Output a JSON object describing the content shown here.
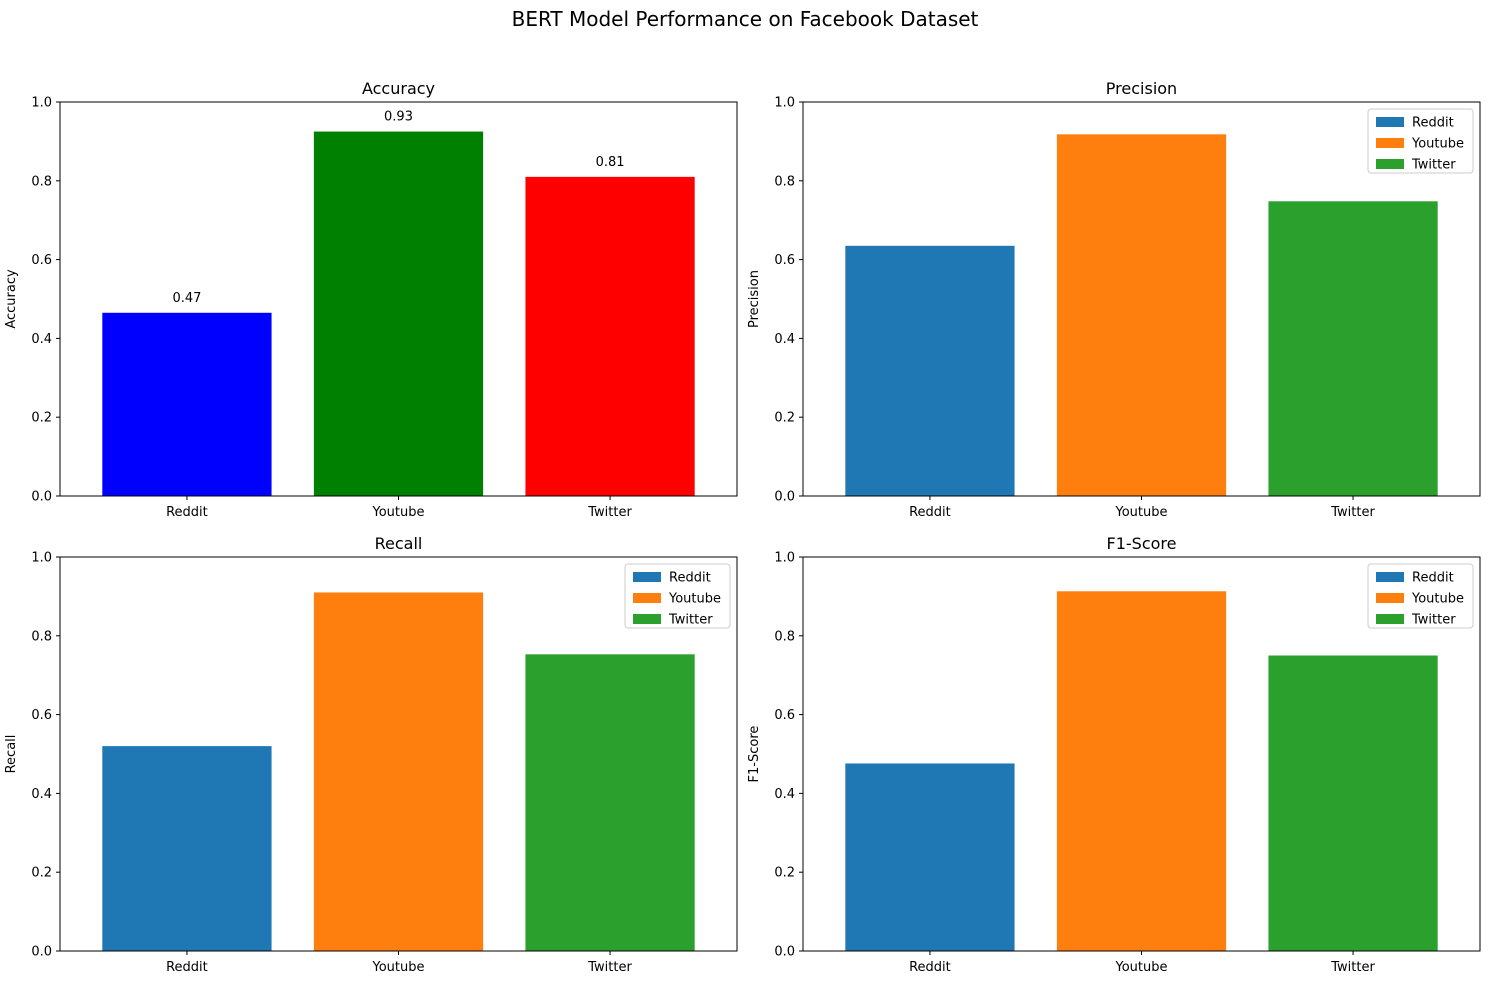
{
  "figure": {
    "title": "BERT Model Performance on Facebook Dataset"
  },
  "chart_data": [
    {
      "type": "bar",
      "title": "Accuracy",
      "xlabel": "",
      "ylabel": "Accuracy",
      "categories": [
        "Reddit",
        "Youtube",
        "Twitter"
      ],
      "values": [
        0.465,
        0.925,
        0.81
      ],
      "colors": [
        "#0000ff",
        "#008000",
        "#ff0000"
      ],
      "data_labels": [
        "0.47",
        "0.93",
        "0.81"
      ],
      "ylim": [
        0,
        1
      ],
      "yticks": [
        "0.0",
        "0.2",
        "0.4",
        "0.6",
        "0.8",
        "1.0"
      ],
      "legend": null,
      "grid": false
    },
    {
      "type": "bar",
      "title": "Precision",
      "xlabel": "",
      "ylabel": "Precision",
      "categories": [
        "Reddit",
        "Youtube",
        "Twitter"
      ],
      "values": [
        0.635,
        0.918,
        0.748
      ],
      "colors": [
        "#1f77b4",
        "#ff7f0e",
        "#2ca02c"
      ],
      "data_labels": [],
      "ylim": [
        0,
        1
      ],
      "yticks": [
        "0.0",
        "0.2",
        "0.4",
        "0.6",
        "0.8",
        "1.0"
      ],
      "legend": {
        "placement": "top-right",
        "entries": [
          "Reddit",
          "Youtube",
          "Twitter"
        ]
      },
      "grid": false
    },
    {
      "type": "bar",
      "title": "Recall",
      "xlabel": "",
      "ylabel": "Recall",
      "categories": [
        "Reddit",
        "Youtube",
        "Twitter"
      ],
      "values": [
        0.52,
        0.91,
        0.753
      ],
      "colors": [
        "#1f77b4",
        "#ff7f0e",
        "#2ca02c"
      ],
      "data_labels": [],
      "ylim": [
        0,
        1
      ],
      "yticks": [
        "0.0",
        "0.2",
        "0.4",
        "0.6",
        "0.8",
        "1.0"
      ],
      "legend": {
        "placement": "top-right",
        "entries": [
          "Reddit",
          "Youtube",
          "Twitter"
        ]
      },
      "grid": false
    },
    {
      "type": "bar",
      "title": "F1-Score",
      "xlabel": "",
      "ylabel": "F1-Score",
      "categories": [
        "Reddit",
        "Youtube",
        "Twitter"
      ],
      "values": [
        0.476,
        0.913,
        0.75
      ],
      "colors": [
        "#1f77b4",
        "#ff7f0e",
        "#2ca02c"
      ],
      "data_labels": [],
      "ylim": [
        0,
        1
      ],
      "yticks": [
        "0.0",
        "0.2",
        "0.4",
        "0.6",
        "0.8",
        "1.0"
      ],
      "legend": {
        "placement": "top-right",
        "entries": [
          "Reddit",
          "Youtube",
          "Twitter"
        ]
      },
      "grid": false
    }
  ]
}
